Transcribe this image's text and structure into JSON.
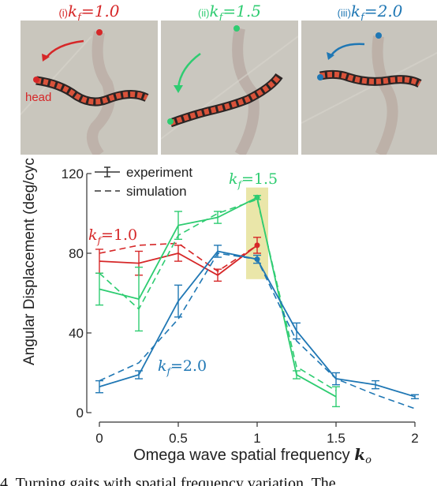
{
  "panels": [
    {
      "roman": "(i)",
      "kf_label": "kf=1.0",
      "color": "#d62728",
      "head_label": "head"
    },
    {
      "roman": "(ii)",
      "kf_label": "kf=1.5",
      "color": "#2ecc71"
    },
    {
      "roman": "(iii)",
      "kf_label": "kf=2.0",
      "color": "#1f77b4"
    }
  ],
  "chart_data": {
    "type": "line",
    "xlabel": "Omega wave spatial frequency ko",
    "ylabel": "Angular Displacement (deg/cycle)",
    "xlim": [
      0,
      2
    ],
    "ylim": [
      0,
      120
    ],
    "xticks": [
      "0",
      "0.5",
      "1",
      "1.5",
      "2"
    ],
    "yticks": [
      "0",
      "40",
      "80",
      "120"
    ],
    "legend": {
      "placement": "top-left",
      "entries": [
        "experiment",
        "simulation"
      ]
    },
    "highlight": {
      "x_range": [
        0.93,
        1.07
      ],
      "y_range": [
        67,
        113
      ],
      "color": "#e6e29a"
    },
    "series": [
      {
        "name": "kf=1.0",
        "color": "#d62728",
        "x": [
          0,
          0.25,
          0.5,
          0.75,
          1
        ],
        "experiment": [
          76,
          75,
          80,
          69,
          84
        ],
        "error": [
          6,
          6,
          4,
          3,
          4
        ],
        "sim_x": [
          0,
          0.25,
          0.5,
          0.75,
          1
        ],
        "simulation": [
          80,
          84,
          85,
          71,
          84
        ]
      },
      {
        "name": "kf=1.5",
        "color": "#2ecc71",
        "x": [
          0,
          0.25,
          0.5,
          0.75,
          1,
          1.25,
          1.5
        ],
        "experiment": [
          62,
          57,
          94,
          98,
          108,
          19,
          8
        ],
        "error": [
          8,
          16,
          7,
          3,
          1,
          2,
          5
        ],
        "sim_x": [
          0,
          0.25,
          0.5,
          0.75,
          1,
          1.25,
          1.5
        ],
        "simulation": [
          70,
          52,
          89,
          100,
          107,
          23,
          11
        ]
      },
      {
        "name": "kf=2.0",
        "color": "#1f77b4",
        "x": [
          0,
          0.25,
          0.5,
          0.75,
          1,
          1.25,
          1.5,
          1.75,
          2
        ],
        "experiment": [
          13,
          19,
          56,
          81,
          77,
          41,
          17,
          14,
          8
        ],
        "error": [
          3,
          2,
          8,
          3,
          2,
          4,
          3,
          2,
          1
        ],
        "sim_x": [
          0,
          0.25,
          0.5,
          0.75,
          1,
          1.25,
          1.5,
          1.75,
          2
        ],
        "simulation": [
          16,
          25,
          47,
          80,
          77,
          36,
          17,
          9,
          2
        ]
      }
    ],
    "annotations": [
      {
        "text": "kf=1.0",
        "color": "#d62728"
      },
      {
        "text": "kf=1.5",
        "color": "#2ecc71"
      },
      {
        "text": "kf=2.0",
        "color": "#1f77b4"
      }
    ]
  },
  "caption": "4. Turning gaits with spatial frequency variation. The"
}
